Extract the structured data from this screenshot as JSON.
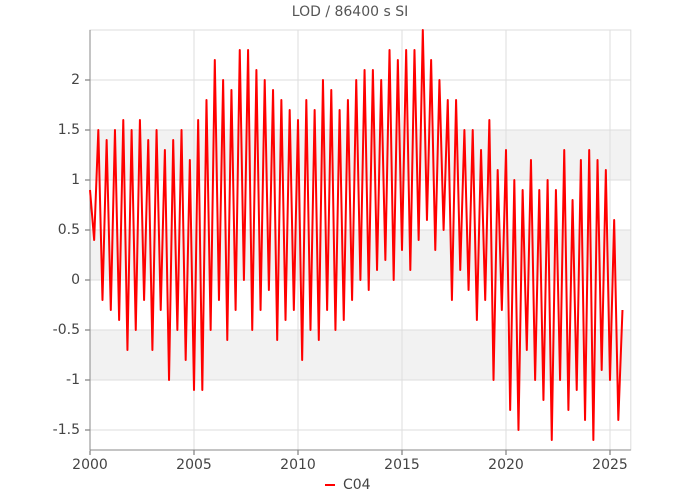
{
  "chart_data": {
    "type": "line",
    "title": "LOD / 86400 s SI",
    "x": [
      2000.0,
      2000.2,
      2000.4,
      2000.6,
      2000.8,
      2001.0,
      2001.2,
      2001.4,
      2001.6,
      2001.8,
      2002.0,
      2002.2,
      2002.4,
      2002.6,
      2002.8,
      2003.0,
      2003.2,
      2003.4,
      2003.6,
      2003.8,
      2004.0,
      2004.2,
      2004.4,
      2004.6,
      2004.8,
      2005.0,
      2005.2,
      2005.4,
      2005.6,
      2005.8,
      2006.0,
      2006.2,
      2006.4,
      2006.6,
      2006.8,
      2007.0,
      2007.2,
      2007.4,
      2007.6,
      2007.8,
      2008.0,
      2008.2,
      2008.4,
      2008.6,
      2008.8,
      2009.0,
      2009.2,
      2009.4,
      2009.6,
      2009.8,
      2010.0,
      2010.2,
      2010.4,
      2010.6,
      2010.8,
      2011.0,
      2011.2,
      2011.4,
      2011.6,
      2011.8,
      2012.0,
      2012.2,
      2012.4,
      2012.6,
      2012.8,
      2013.0,
      2013.2,
      2013.4,
      2013.6,
      2013.8,
      2014.0,
      2014.2,
      2014.4,
      2014.6,
      2014.8,
      2015.0,
      2015.2,
      2015.4,
      2015.6,
      2015.8,
      2016.0,
      2016.2,
      2016.4,
      2016.6,
      2016.8,
      2017.0,
      2017.2,
      2017.4,
      2017.6,
      2017.8,
      2018.0,
      2018.2,
      2018.4,
      2018.6,
      2018.8,
      2019.0,
      2019.2,
      2019.4,
      2019.6,
      2019.8,
      2020.0,
      2020.2,
      2020.4,
      2020.6,
      2020.8,
      2021.0,
      2021.2,
      2021.4,
      2021.6,
      2021.8,
      2022.0,
      2022.2,
      2022.4,
      2022.6,
      2022.8,
      2023.0,
      2023.2,
      2023.4,
      2023.6,
      2023.8,
      2024.0,
      2024.2,
      2024.4,
      2024.6,
      2024.8,
      2025.0,
      2025.2,
      2025.4,
      2025.6
    ],
    "series": [
      {
        "name": "C04",
        "color": "#ff0000",
        "values": [
          0.9,
          0.4,
          1.5,
          -0.2,
          1.4,
          -0.3,
          1.5,
          -0.4,
          1.6,
          -0.7,
          1.5,
          -0.5,
          1.6,
          -0.2,
          1.4,
          -0.7,
          1.5,
          -0.3,
          1.3,
          -1.0,
          1.4,
          -0.5,
          1.5,
          -0.8,
          1.2,
          -1.1,
          1.6,
          -1.1,
          1.8,
          -0.5,
          2.2,
          -0.2,
          2.0,
          -0.6,
          1.9,
          -0.3,
          2.3,
          0.0,
          2.3,
          -0.5,
          2.1,
          -0.3,
          2.0,
          -0.1,
          1.9,
          -0.6,
          1.8,
          -0.4,
          1.7,
          -0.3,
          1.6,
          -0.8,
          1.8,
          -0.5,
          1.7,
          -0.6,
          2.0,
          -0.3,
          1.9,
          -0.5,
          1.7,
          -0.4,
          1.8,
          -0.2,
          2.0,
          0.0,
          2.1,
          -0.1,
          2.1,
          0.1,
          2.0,
          0.2,
          2.3,
          0.0,
          2.2,
          0.3,
          2.3,
          0.1,
          2.3,
          0.4,
          2.5,
          0.6,
          2.2,
          0.3,
          2.0,
          0.5,
          1.8,
          -0.2,
          1.8,
          0.1,
          1.5,
          -0.1,
          1.5,
          -0.4,
          1.3,
          -0.2,
          1.6,
          -1.0,
          1.1,
          -0.3,
          1.3,
          -1.3,
          1.0,
          -1.5,
          0.9,
          -0.7,
          1.2,
          -1.0,
          0.9,
          -1.2,
          1.0,
          -1.6,
          0.9,
          -1.0,
          1.3,
          -1.3,
          0.8,
          -1.1,
          1.2,
          -1.4,
          1.3,
          -1.6,
          1.2,
          -0.9,
          1.1,
          -1.0,
          0.6,
          -1.4,
          -0.3
        ]
      }
    ],
    "xlim": [
      2000,
      2026
    ],
    "xticks": [
      2000,
      2005,
      2010,
      2015,
      2020,
      2025
    ],
    "ylim": [
      -1.7,
      2.5
    ],
    "yticks": [
      -1.5,
      -1,
      -0.5,
      0,
      0.5,
      1,
      1.5,
      2
    ],
    "grid": true
  }
}
